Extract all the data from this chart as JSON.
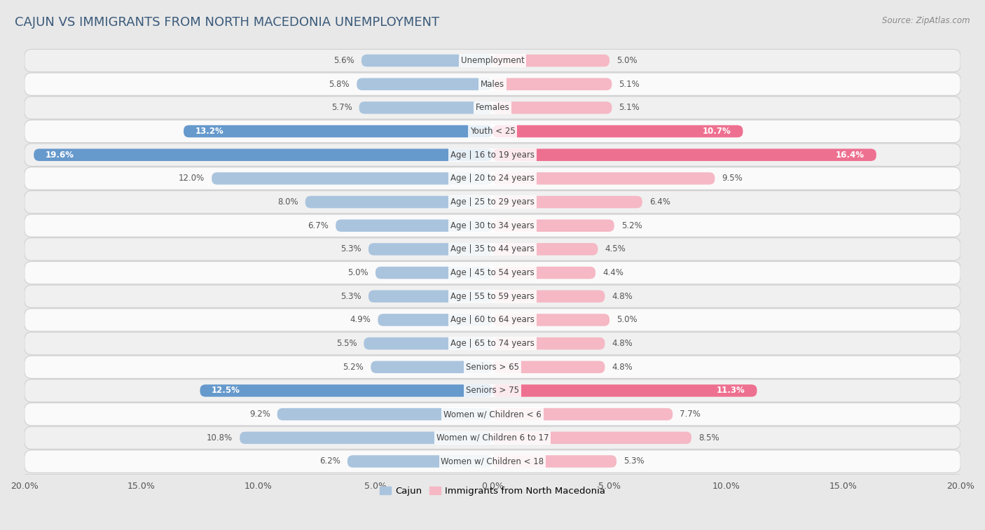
{
  "title": "CAJUN VS IMMIGRANTS FROM NORTH MACEDONIA UNEMPLOYMENT",
  "source": "Source: ZipAtlas.com",
  "categories": [
    "Unemployment",
    "Males",
    "Females",
    "Youth < 25",
    "Age | 16 to 19 years",
    "Age | 20 to 24 years",
    "Age | 25 to 29 years",
    "Age | 30 to 34 years",
    "Age | 35 to 44 years",
    "Age | 45 to 54 years",
    "Age | 55 to 59 years",
    "Age | 60 to 64 years",
    "Age | 65 to 74 years",
    "Seniors > 65",
    "Seniors > 75",
    "Women w/ Children < 6",
    "Women w/ Children 6 to 17",
    "Women w/ Children < 18"
  ],
  "cajun_values": [
    5.6,
    5.8,
    5.7,
    13.2,
    19.6,
    12.0,
    8.0,
    6.7,
    5.3,
    5.0,
    5.3,
    4.9,
    5.5,
    5.2,
    12.5,
    9.2,
    10.8,
    6.2
  ],
  "immig_values": [
    5.0,
    5.1,
    5.1,
    10.7,
    16.4,
    9.5,
    6.4,
    5.2,
    4.5,
    4.4,
    4.8,
    5.0,
    4.8,
    4.8,
    11.3,
    7.7,
    8.5,
    5.3
  ],
  "cajun_color_normal": "#aac4de",
  "cajun_color_highlight": "#6699cc",
  "immig_color_normal": "#f5b8c4",
  "immig_color_highlight": "#ee7090",
  "highlight_rows": [
    3,
    4,
    14
  ],
  "background_color": "#e8e8e8",
  "row_bg_even": "#f0f0f0",
  "row_bg_odd": "#fafafa",
  "row_border_color": "#d0d0d0",
  "x_min": -20.0,
  "x_max": 20.0,
  "bar_height": 0.52,
  "legend_cajun": "Cajun",
  "legend_immig": "Immigrants from North Macedonia"
}
